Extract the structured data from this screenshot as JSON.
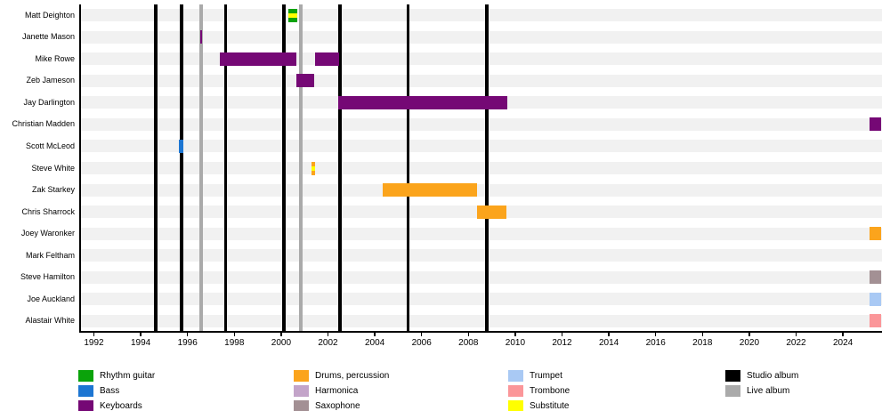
{
  "chart_data": {
    "type": "timeline-gantt",
    "description": "Band members timeline: colored bars show tenure per instrument; vertical lines mark album releases",
    "x_axis": {
      "tick_years": [
        1992,
        1994,
        1996,
        1998,
        2000,
        2002,
        2004,
        2006,
        2008,
        2010,
        2012,
        2014,
        2016,
        2018,
        2020,
        2022,
        2024
      ],
      "domain_start": 1991.4,
      "domain_end": 2025.7,
      "grid": false
    },
    "roles": {
      "rhythm_guitar": {
        "label": "Rhythm guitar",
        "color": "#0aa30a"
      },
      "bass": {
        "label": "Bass",
        "color": "#1d76d2"
      },
      "keyboards": {
        "label": "Keyboards",
        "color": "#750875"
      },
      "drums": {
        "label": "Drums, percussion",
        "color": "#fba41c"
      },
      "harmonica": {
        "label": "Harmonica",
        "color": "#c3a4c9"
      },
      "saxophone": {
        "label": "Saxophone",
        "color": "#a39094"
      },
      "trumpet": {
        "label": "Trumpet",
        "color": "#a9c9f4"
      },
      "trombone": {
        "label": "Trombone",
        "color": "#fb9699"
      },
      "substitute": {
        "label": "Substitute",
        "color": "#ffff00"
      },
      "studio_album": {
        "label": "Studio album",
        "color": "#000000"
      },
      "live_album": {
        "label": "Live album",
        "color": "#aaaaaa"
      }
    },
    "members": [
      {
        "name": "Matt Deighton",
        "bars": [
          {
            "start": 2000.32,
            "end": 2000.67,
            "role": "rhythm_guitar",
            "substitute": true
          }
        ]
      },
      {
        "name": "Janette Mason",
        "bars": [
          {
            "start": 1996.53,
            "end": 1996.62,
            "role": "keyboards",
            "substitute": false
          }
        ]
      },
      {
        "name": "Mike Rowe",
        "bars": [
          {
            "start": 1997.38,
            "end": 2000.65,
            "role": "keyboards",
            "substitute": false
          },
          {
            "start": 2001.45,
            "end": 2002.48,
            "role": "keyboards",
            "substitute": false
          }
        ]
      },
      {
        "name": "Zeb Jameson",
        "bars": [
          {
            "start": 2000.65,
            "end": 2001.42,
            "role": "keyboards",
            "substitute": false
          }
        ]
      },
      {
        "name": "Jay Darlington",
        "bars": [
          {
            "start": 2002.45,
            "end": 2009.67,
            "role": "keyboards",
            "substitute": false
          }
        ]
      },
      {
        "name": "Christian Madden",
        "bars": [
          {
            "start": 2025.15,
            "end": 2025.65,
            "role": "keyboards",
            "substitute": false
          }
        ]
      },
      {
        "name": "Scott McLeod",
        "bars": [
          {
            "start": 1995.63,
            "end": 1995.84,
            "role": "bass",
            "substitute": false
          }
        ]
      },
      {
        "name": "Steve White",
        "bars": [
          {
            "start": 2001.28,
            "end": 2001.43,
            "role": "drums",
            "substitute": true
          }
        ]
      },
      {
        "name": "Zak Starkey",
        "bars": [
          {
            "start": 2004.32,
            "end": 2008.35,
            "role": "drums",
            "substitute": false
          }
        ]
      },
      {
        "name": "Chris Sharrock",
        "bars": [
          {
            "start": 2008.35,
            "end": 2009.62,
            "role": "drums",
            "substitute": false
          }
        ]
      },
      {
        "name": "Joey Waronker",
        "bars": [
          {
            "start": 2025.15,
            "end": 2025.65,
            "role": "drums",
            "substitute": false
          }
        ]
      },
      {
        "name": "Mark Feltham",
        "bars": []
      },
      {
        "name": "Steve Hamilton",
        "bars": [
          {
            "start": 2025.15,
            "end": 2025.65,
            "role": "saxophone",
            "substitute": false
          }
        ]
      },
      {
        "name": "Joe Auckland",
        "bars": [
          {
            "start": 2025.15,
            "end": 2025.65,
            "role": "trumpet",
            "substitute": false
          }
        ]
      },
      {
        "name": "Alastair White",
        "bars": [
          {
            "start": 2025.15,
            "end": 2025.65,
            "role": "trombone",
            "substitute": false
          }
        ]
      }
    ],
    "albums": {
      "studio_years": [
        1994.65,
        1995.75,
        1997.62,
        2000.12,
        2002.52,
        2005.42,
        2008.78
      ],
      "live_years": [
        1996.58,
        2000.84
      ]
    }
  },
  "legend": {
    "columns": [
      {
        "items": [
          "rhythm_guitar",
          "bass",
          "keyboards"
        ]
      },
      {
        "items": [
          "drums",
          "harmonica",
          "saxophone"
        ]
      },
      {
        "items": [
          "trumpet",
          "trombone",
          "substitute"
        ]
      },
      {
        "items": [
          "studio_album",
          "live_album"
        ]
      }
    ]
  }
}
